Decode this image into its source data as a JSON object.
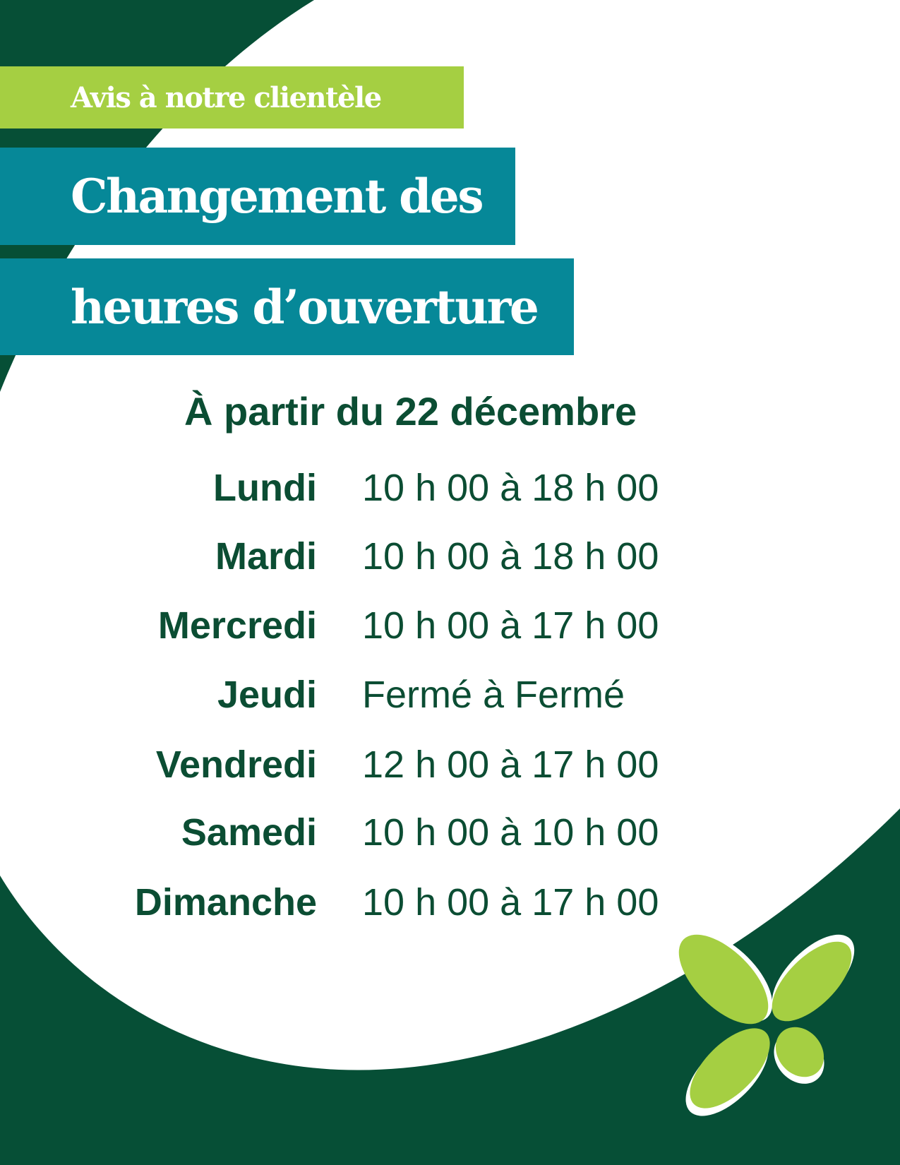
{
  "colors": {
    "dark_green": "#064f36",
    "lime": "#a5cf42",
    "teal": "#068898",
    "white": "#ffffff"
  },
  "notice": "Avis à notre clientèle",
  "title_line1": "Changement des",
  "title_line2": "heures d’ouverture",
  "effective": "À partir du 22 décembre",
  "schedule": [
    {
      "day": "Lundi",
      "hours": "10 h 00 à 18 h 00"
    },
    {
      "day": "Mardi",
      "hours": "10 h 00 à 18 h 00"
    },
    {
      "day": "Mercredi",
      "hours": "10 h 00 à 17 h 00"
    },
    {
      "day": "Jeudi",
      "hours": "Fermé à Fermé"
    },
    {
      "day": "Vendredi",
      "hours": "12 h 00 à 17 h 00"
    },
    {
      "day": "Samedi",
      "hours": "10 h 00 à 10 h 00"
    },
    {
      "day": "Dimanche",
      "hours": "10 h 00 à 17 h 00"
    }
  ],
  "logo": "four-leaf-logo"
}
